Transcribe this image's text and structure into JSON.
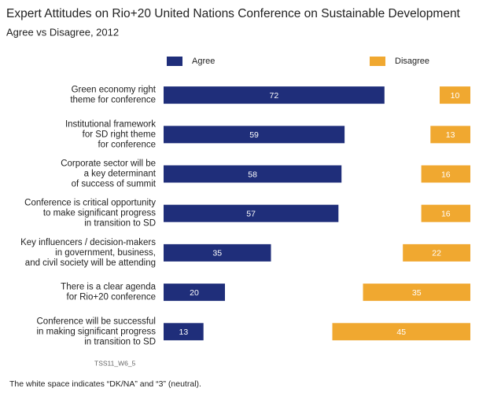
{
  "chart_data": {
    "type": "bar",
    "title": "Expert Attitudes on Rio+20 United Nations Conference on Sustainable Development",
    "subtitle": "Agree vs Disagree, 2012",
    "categories": [
      "Green economy right\ntheme for conference",
      "Institutional framework\nfor SD right theme\nfor conference",
      "Corporate sector will be\na key determinant\nof success of summit",
      "Conference is critical opportunity\nto make significant progress\nin transition to SD",
      "Key influencers / decision-makers\nin government, business,\nand civil society will be attending",
      "There is a clear agenda\nfor Rio+20 conference",
      "Conference will be successful\nin making significant progress\nin transition to SD"
    ],
    "series": [
      {
        "name": "Agree",
        "color": "#1f2e7a",
        "values": [
          72,
          59,
          58,
          57,
          35,
          20,
          13
        ]
      },
      {
        "name": "Disagree",
        "color": "#f0a830",
        "values": [
          10,
          13,
          16,
          16,
          22,
          35,
          45
        ]
      }
    ],
    "xlim": [
      0,
      100
    ],
    "source": "TSS11_W6_5",
    "footnote": "The white space indicates “DK/NA” and “3” (neutral)."
  }
}
